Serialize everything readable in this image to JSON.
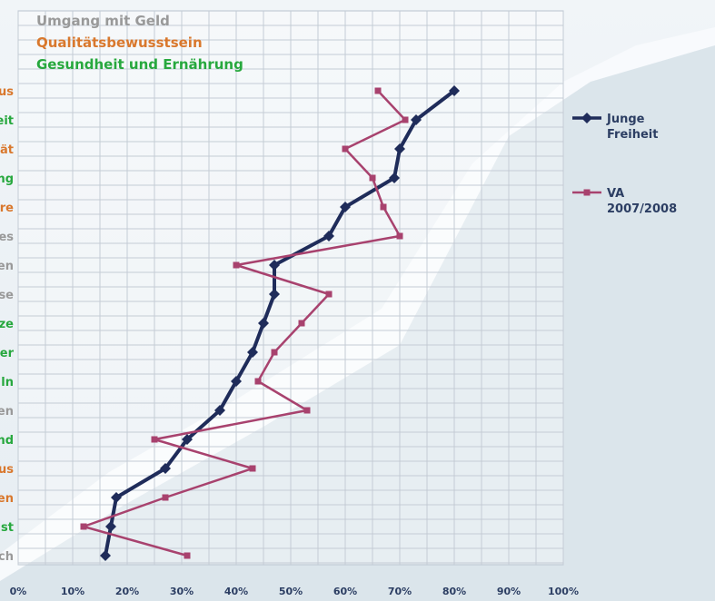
{
  "chart_data": {
    "type": "line",
    "xlim": [
      0,
      100
    ],
    "x_ticks": [
      "0%",
      "10%",
      "20%",
      "30%",
      "40%",
      "50%",
      "60%",
      "70%",
      "80%",
      "90%",
      "100%"
    ],
    "y_labels": [
      {
        "text": "us",
        "group": "orange"
      },
      {
        "text": "eit",
        "group": "green"
      },
      {
        "text": "ät",
        "group": "orange"
      },
      {
        "text": "ng",
        "group": "green"
      },
      {
        "text": "re",
        "group": "orange"
      },
      {
        "text": "es",
        "group": "grey"
      },
      {
        "text": "en",
        "group": "grey"
      },
      {
        "text": "se",
        "group": "grey"
      },
      {
        "text": "ze",
        "group": "green"
      },
      {
        "text": "er",
        "group": "green"
      },
      {
        "text": "ln",
        "group": "green"
      },
      {
        "text": "en",
        "group": "grey"
      },
      {
        "text": "nd",
        "group": "green"
      },
      {
        "text": "us",
        "group": "orange"
      },
      {
        "text": "en",
        "group": "orange"
      },
      {
        "text": "st",
        "group": "green"
      },
      {
        "text": "ch",
        "group": "grey"
      }
    ],
    "category_groups": [
      {
        "name": "Umgang mit Geld",
        "key": "grey",
        "color": "#999999"
      },
      {
        "name": "Qualitätsbewusstsein",
        "key": "orange",
        "color": "#d9782d"
      },
      {
        "name": "Gesundheit und Ernährung",
        "key": "green",
        "color": "#27a83e"
      }
    ],
    "series": [
      {
        "name": "Junge Freiheit",
        "name_lines": [
          "Junge",
          "Freiheit"
        ],
        "color": "#1f2c5a",
        "marker": "diamond",
        "values": [
          80,
          73,
          70,
          69,
          60,
          57,
          47,
          47,
          45,
          43,
          40,
          37,
          31,
          27,
          18,
          17,
          16
        ]
      },
      {
        "name": "VA 2007/2008",
        "name_lines": [
          "VA",
          "2007/2008"
        ],
        "color": "#a8426e",
        "marker": "square",
        "values": [
          66,
          71,
          60,
          65,
          67,
          70,
          40,
          57,
          52,
          47,
          44,
          53,
          25,
          43,
          27,
          12,
          31
        ]
      }
    ],
    "grid": true,
    "legend_position": "right"
  }
}
